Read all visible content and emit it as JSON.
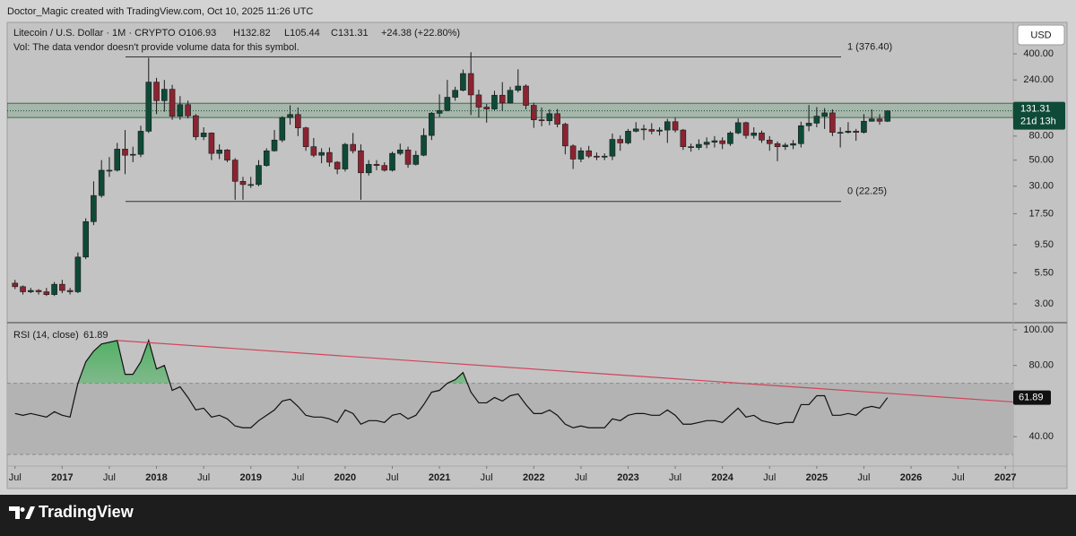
{
  "header": "Doctor_Magic created with TradingView.com, Oct 10, 2025 11:26 UTC",
  "brand": "TradingView",
  "currency": "USD",
  "chart_data": [
    {
      "type": "candlestick",
      "title": "Litecoin / U.S. Dollar · 1M · CRYPTO",
      "ohlc": [
        "O106.93",
        "H132.82",
        "L105.44",
        "C131.31"
      ],
      "change": "+24.38 (+22.80%)",
      "note": "Vol: The data vendor doesn't provide volume data for this symbol.",
      "x": [
        "2016-07",
        "2016-08",
        "2016-09",
        "2016-10",
        "2016-11",
        "2016-12",
        "2017-01",
        "2017-02",
        "2017-03",
        "2017-04",
        "2017-05",
        "2017-06",
        "2017-07",
        "2017-08",
        "2017-09",
        "2017-10",
        "2017-11",
        "2017-12",
        "2018-01",
        "2018-02",
        "2018-03",
        "2018-04",
        "2018-05",
        "2018-06",
        "2018-07",
        "2018-08",
        "2018-09",
        "2018-10",
        "2018-11",
        "2018-12",
        "2019-01",
        "2019-02",
        "2019-03",
        "2019-04",
        "2019-05",
        "2019-06",
        "2019-07",
        "2019-08",
        "2019-09",
        "2019-10",
        "2019-11",
        "2019-12",
        "2020-01",
        "2020-02",
        "2020-03",
        "2020-04",
        "2020-05",
        "2020-06",
        "2020-07",
        "2020-08",
        "2020-09",
        "2020-10",
        "2020-11",
        "2020-12",
        "2021-01",
        "2021-02",
        "2021-03",
        "2021-04",
        "2021-05",
        "2021-06",
        "2021-07",
        "2021-08",
        "2021-09",
        "2021-10",
        "2021-11",
        "2021-12",
        "2022-01",
        "2022-02",
        "2022-03",
        "2022-04",
        "2022-05",
        "2022-06",
        "2022-07",
        "2022-08",
        "2022-09",
        "2022-10",
        "2022-11",
        "2022-12",
        "2023-01",
        "2023-02",
        "2023-03",
        "2023-04",
        "2023-05",
        "2023-06",
        "2023-07",
        "2023-08",
        "2023-09",
        "2023-10",
        "2023-11",
        "2023-12",
        "2024-01",
        "2024-02",
        "2024-03",
        "2024-04",
        "2024-05",
        "2024-06",
        "2024-07",
        "2024-08",
        "2024-09",
        "2024-10",
        "2024-11",
        "2024-12",
        "2025-01",
        "2025-02",
        "2025-03",
        "2025-04",
        "2025-05",
        "2025-06",
        "2025-07",
        "2025-08",
        "2025-09",
        "2025-10"
      ],
      "open": [
        4.5,
        4.2,
        3.8,
        3.9,
        3.8,
        3.6,
        4.4,
        3.9,
        3.8,
        7.5,
        15,
        25,
        41,
        41,
        62,
        55,
        56,
        88,
        230,
        160,
        200,
        118,
        148,
        119,
        79,
        85,
        57,
        61,
        50,
        33,
        31,
        31,
        45,
        60,
        74,
        115,
        122,
        94,
        65,
        55,
        58,
        48,
        42,
        68,
        60,
        39,
        46,
        45,
        41,
        57,
        61,
        46,
        55,
        81,
        125,
        132,
        171,
        196,
        272,
        179,
        141,
        136,
        178,
        153,
        196,
        213,
        146,
        110,
        108,
        124,
        101,
        66,
        51,
        60,
        54,
        53,
        54,
        75,
        70,
        88,
        92,
        91,
        88,
        90,
        106,
        90,
        65,
        64,
        68,
        71,
        73,
        69,
        85,
        104,
        81,
        85,
        74,
        69,
        65,
        67,
        69,
        98,
        103,
        118,
        126,
        86,
        86,
        88,
        86,
        107,
        112,
        106.93
      ],
      "high": [
        4.8,
        4.3,
        4.1,
        4.0,
        4.1,
        4.6,
        4.8,
        4.1,
        8.2,
        16,
        33,
        50,
        53,
        70,
        90,
        65,
        98,
        370,
        250,
        240,
        218,
        175,
        160,
        123,
        95,
        86,
        68,
        62,
        52,
        36,
        36,
        50,
        63,
        90,
        118,
        146,
        140,
        96,
        77,
        63,
        64,
        49,
        70,
        85,
        68,
        50,
        50,
        48,
        59,
        69,
        65,
        60,
        93,
        128,
        181,
        240,
        210,
        294,
        413,
        198,
        150,
        194,
        230,
        210,
        295,
        220,
        154,
        140,
        135,
        136,
        104,
        68,
        64,
        66,
        58,
        57,
        84,
        81,
        92,
        105,
        100,
        103,
        95,
        112,
        115,
        92,
        69,
        75,
        78,
        80,
        78,
        88,
        113,
        106,
        95,
        89,
        80,
        72,
        70,
        74,
        106,
        147,
        141,
        138,
        135,
        95,
        105,
        92,
        123,
        135,
        123,
        132.82
      ],
      "low": [
        4.0,
        3.6,
        3.7,
        3.6,
        3.5,
        3.5,
        3.7,
        3.6,
        3.7,
        7.2,
        14,
        24,
        36,
        40,
        38,
        48,
        53,
        85,
        123,
        129,
        110,
        110,
        113,
        74,
        74,
        50,
        51,
        48,
        23,
        23,
        29,
        30,
        44,
        59,
        71,
        100,
        80,
        60,
        53,
        47,
        44,
        38,
        40,
        57,
        23,
        37,
        41,
        40,
        40,
        55,
        43,
        45,
        54,
        74,
        116,
        130,
        160,
        192,
        121,
        115,
        104,
        133,
        131,
        151,
        188,
        135,
        94,
        97,
        99,
        95,
        56,
        42,
        48,
        52,
        50,
        50,
        50,
        60,
        68,
        86,
        74,
        83,
        81,
        70,
        86,
        61,
        59,
        61,
        63,
        64,
        62,
        66,
        83,
        76,
        76,
        70,
        60,
        49,
        61,
        62,
        64,
        88,
        95,
        92,
        80,
        64,
        84,
        73,
        84,
        106,
        100,
        105.44
      ],
      "close": [
        4.2,
        3.8,
        3.9,
        3.8,
        3.6,
        4.4,
        3.9,
        3.8,
        7.5,
        15,
        25,
        41,
        41,
        62,
        55,
        56,
        88,
        230,
        160,
        200,
        118,
        148,
        119,
        79,
        85,
        57,
        61,
        50,
        33,
        31,
        31,
        45,
        60,
        74,
        115,
        122,
        94,
        65,
        55,
        58,
        48,
        42,
        68,
        60,
        39,
        46,
        45,
        41,
        57,
        61,
        46,
        55,
        81,
        125,
        132,
        171,
        196,
        272,
        179,
        141,
        136,
        178,
        153,
        196,
        213,
        146,
        110,
        108,
        124,
        101,
        66,
        51,
        60,
        54,
        53,
        54,
        75,
        70,
        88,
        92,
        91,
        88,
        90,
        106,
        90,
        65,
        64,
        68,
        71,
        73,
        69,
        85,
        104,
        81,
        85,
        74,
        69,
        65,
        67,
        69,
        98,
        103,
        118,
        126,
        86,
        86,
        88,
        86,
        107,
        112,
        106.93,
        131.31
      ],
      "up_color": "#0e4a37",
      "down_color": "#8c2331",
      "log_scale": true,
      "xlim": [
        "2016-06",
        "2027-02"
      ],
      "ylim": [
        2.15,
        740
      ],
      "yticks": [
        {
          "value": 3,
          "label": "3.00"
        },
        {
          "value": 5.5,
          "label": "5.50"
        },
        {
          "value": 9.5,
          "label": "9.50"
        },
        {
          "value": 17.5,
          "label": "17.50"
        },
        {
          "value": 30,
          "label": "30.00"
        },
        {
          "value": 50,
          "label": "50.00"
        },
        {
          "value": 80,
          "label": "80.00"
        },
        {
          "value": 240,
          "label": "240.00"
        },
        {
          "value": 400,
          "label": "400.00"
        }
      ],
      "levels": [
        {
          "value": 376.4,
          "label": "1 (376.40)"
        },
        {
          "value": 22.25,
          "label": "0 (22.25)"
        }
      ],
      "zone": [
        115,
        152
      ],
      "zone_color": "#6f9e7f",
      "countdown": "21d 13h"
    },
    {
      "type": "line",
      "title": "RSI (14, close)",
      "x": [
        "2016-07",
        "2016-08",
        "2016-09",
        "2016-10",
        "2016-11",
        "2016-12",
        "2017-01",
        "2017-02",
        "2017-03",
        "2017-04",
        "2017-05",
        "2017-06",
        "2017-07",
        "2017-08",
        "2017-09",
        "2017-10",
        "2017-11",
        "2017-12",
        "2018-01",
        "2018-02",
        "2018-03",
        "2018-04",
        "2018-05",
        "2018-06",
        "2018-07",
        "2018-08",
        "2018-09",
        "2018-10",
        "2018-11",
        "2018-12",
        "2019-01",
        "2019-02",
        "2019-03",
        "2019-04",
        "2019-05",
        "2019-06",
        "2019-07",
        "2019-08",
        "2019-09",
        "2019-10",
        "2019-11",
        "2019-12",
        "2020-01",
        "2020-02",
        "2020-03",
        "2020-04",
        "2020-05",
        "2020-06",
        "2020-07",
        "2020-08",
        "2020-09",
        "2020-10",
        "2020-11",
        "2020-12",
        "2021-01",
        "2021-02",
        "2021-03",
        "2021-04",
        "2021-05",
        "2021-06",
        "2021-07",
        "2021-08",
        "2021-09",
        "2021-10",
        "2021-11",
        "2021-12",
        "2022-01",
        "2022-02",
        "2022-03",
        "2022-04",
        "2022-05",
        "2022-06",
        "2022-07",
        "2022-08",
        "2022-09",
        "2022-10",
        "2022-11",
        "2022-12",
        "2023-01",
        "2023-02",
        "2023-03",
        "2023-04",
        "2023-05",
        "2023-06",
        "2023-07",
        "2023-08",
        "2023-09",
        "2023-10",
        "2023-11",
        "2023-12",
        "2024-01",
        "2024-02",
        "2024-03",
        "2024-04",
        "2024-05",
        "2024-06",
        "2024-07",
        "2024-08",
        "2024-09",
        "2024-10",
        "2024-11",
        "2024-12",
        "2025-01",
        "2025-02",
        "2025-03",
        "2025-04",
        "2025-05",
        "2025-06",
        "2025-07",
        "2025-08",
        "2025-09",
        "2025-10"
      ],
      "values": [
        53,
        52,
        53,
        52,
        51,
        54,
        52,
        51,
        70,
        82,
        88,
        92,
        93,
        94,
        75,
        75,
        82,
        94,
        78,
        80,
        66,
        68,
        62,
        55,
        56,
        51,
        52,
        50,
        46,
        45,
        45,
        49,
        52,
        55,
        60,
        61,
        57,
        52,
        51,
        51,
        50,
        48,
        55,
        53,
        47,
        49,
        49,
        48,
        52,
        53,
        50,
        52,
        58,
        65,
        66,
        70,
        72,
        76,
        65,
        59,
        59,
        62,
        60,
        63,
        64,
        58,
        53,
        53,
        55,
        52,
        47,
        45,
        46,
        45,
        45,
        45,
        50,
        49,
        52,
        53,
        53,
        52,
        52,
        55,
        52,
        47,
        47,
        48,
        49,
        49,
        48,
        52,
        56,
        51,
        52,
        49,
        48,
        47,
        48,
        48,
        58,
        58,
        63,
        63,
        52,
        52,
        53,
        52,
        56,
        57,
        56,
        61.89
      ],
      "color": "#111111",
      "fill_color": "#5fbf6f",
      "band": [
        30,
        70
      ],
      "trendline": {
        "x": [
          "2017-08",
          "2027-02"
        ],
        "values": [
          94,
          59.5
        ],
        "color": "#d0455b"
      },
      "xlim": [
        "2016-06",
        "2027-02"
      ],
      "ylim": [
        26,
        103.5
      ],
      "yticks": [
        {
          "value": 40,
          "label": "40.00"
        },
        {
          "value": 80,
          "label": "80.00"
        },
        {
          "value": 100,
          "label": "100.00"
        }
      ],
      "xticks": [
        {
          "value": "2016-07",
          "label": "Jul"
        },
        {
          "value": "2017-01",
          "label": "2017"
        },
        {
          "value": "2017-07",
          "label": "Jul"
        },
        {
          "value": "2018-01",
          "label": "2018"
        },
        {
          "value": "2018-07",
          "label": "Jul"
        },
        {
          "value": "2019-01",
          "label": "2019"
        },
        {
          "value": "2019-07",
          "label": "Jul"
        },
        {
          "value": "2020-01",
          "label": "2020"
        },
        {
          "value": "2020-07",
          "label": "Jul"
        },
        {
          "value": "2021-01",
          "label": "2021"
        },
        {
          "value": "2021-07",
          "label": "Jul"
        },
        {
          "value": "2022-01",
          "label": "2022"
        },
        {
          "value": "2022-07",
          "label": "Jul"
        },
        {
          "value": "2023-01",
          "label": "2023"
        },
        {
          "value": "2023-07",
          "label": "Jul"
        },
        {
          "value": "2024-01",
          "label": "2024"
        },
        {
          "value": "2024-07",
          "label": "Jul"
        },
        {
          "value": "2025-01",
          "label": "2025"
        },
        {
          "value": "2025-07",
          "label": "Jul"
        },
        {
          "value": "2026-01",
          "label": "2026"
        },
        {
          "value": "2026-07",
          "label": "Jul"
        },
        {
          "value": "2027-01",
          "label": "2027"
        }
      ]
    }
  ]
}
